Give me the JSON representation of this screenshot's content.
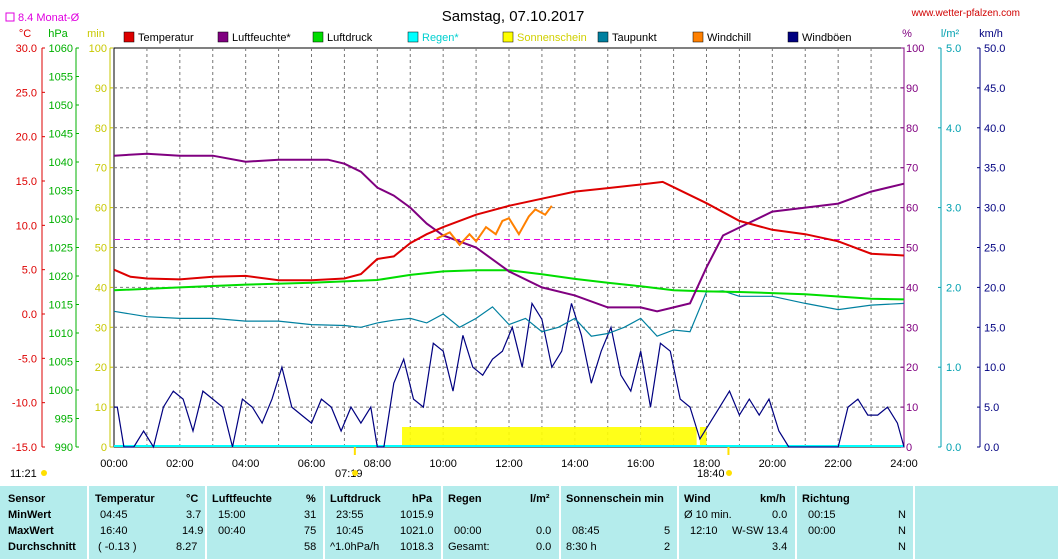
{
  "header": {
    "title": "Samstag, 07.10.2017",
    "url": "www.wetter-pfalzen.com",
    "avg_label": "8.4 Monat-Ø"
  },
  "axis_units": {
    "temp": "°C",
    "press": "hPa",
    "sun": "min",
    "hum": "%",
    "rain": "l/m²",
    "wind": "km/h"
  },
  "legend": [
    {
      "label": "Temperatur",
      "color": "#dd0000"
    },
    {
      "label": "Luftfeuchte*",
      "color": "#800080"
    },
    {
      "label": "Luftdruck",
      "color": "#00dd00"
    },
    {
      "label": "Regen*",
      "color": "#00ffff"
    },
    {
      "label": "Sonnenschein",
      "color": "#ffff00"
    },
    {
      "label": "Taupunkt",
      "color": "#0080a0"
    },
    {
      "label": "Windchill",
      "color": "#ff8000"
    },
    {
      "label": "Windböen",
      "color": "#000080"
    }
  ],
  "annotations": {
    "sunrise": "07:19",
    "sunset": "18:40",
    "bottom_left": "11:21"
  },
  "chart_data": {
    "type": "line",
    "x_ticks": [
      "00:00",
      "02:00",
      "04:00",
      "06:00",
      "08:00",
      "10:00",
      "12:00",
      "14:00",
      "16:00",
      "18:00",
      "20:00",
      "22:00",
      "24:00"
    ],
    "axes": {
      "temperature": {
        "unit": "°C",
        "ylim": [
          -15,
          30
        ],
        "ticks": [
          "30.0",
          "25.0",
          "20.0",
          "15.0",
          "10.0",
          "5.0",
          "0.0",
          "-5.0",
          "-10.0",
          "-15.0"
        ]
      },
      "pressure": {
        "unit": "hPa",
        "ylim": [
          990,
          1060
        ],
        "ticks": [
          "1060",
          "1055",
          "1050",
          "1045",
          "1040",
          "1035",
          "1030",
          "1025",
          "1020",
          "1015",
          "1010",
          "1005",
          "1000",
          "995",
          "990"
        ]
      },
      "sunshine": {
        "unit": "min",
        "ylim": [
          0,
          100
        ],
        "ticks": [
          "100",
          "90",
          "80",
          "70",
          "60",
          "50",
          "40",
          "30",
          "20",
          "10",
          "0"
        ]
      },
      "humidity": {
        "unit": "%",
        "ylim": [
          0,
          100
        ],
        "ticks": [
          "100",
          "90",
          "80",
          "70",
          "60",
          "50",
          "40",
          "30",
          "20",
          "10",
          "0"
        ]
      },
      "rain": {
        "unit": "l/m²",
        "ylim": [
          0,
          5
        ],
        "ticks": [
          "5.0",
          "4.0",
          "3.0",
          "2.0",
          "1.0",
          "0.0"
        ]
      },
      "wind": {
        "unit": "km/h",
        "ylim": [
          0,
          50
        ],
        "ticks": [
          "50.0",
          "45.0",
          "40.0",
          "35.0",
          "30.0",
          "25.0",
          "20.0",
          "15.0",
          "10.0",
          "5.0",
          "0.0"
        ]
      }
    },
    "monthly_avg_temp": 8.4,
    "series": [
      {
        "name": "Temperatur",
        "axis": "temperature",
        "x": [
          0,
          0.5,
          1,
          2,
          3,
          4,
          5,
          6,
          7,
          7.5,
          8,
          8.5,
          9,
          9.5,
          10,
          11,
          12,
          13,
          14,
          15,
          16,
          16.67,
          17,
          18,
          19,
          20,
          21,
          22,
          23,
          24
        ],
        "values": [
          5.0,
          4.2,
          4.0,
          3.9,
          4.2,
          4.3,
          3.8,
          3.8,
          4.0,
          4.5,
          6.2,
          6.5,
          8.0,
          9.0,
          9.8,
          11.2,
          12.2,
          13.0,
          13.8,
          14.2,
          14.6,
          14.9,
          14.3,
          12.5,
          10.5,
          9.5,
          9.0,
          8.2,
          6.8,
          6.6
        ]
      },
      {
        "name": "Luftfeuchte*",
        "axis": "humidity",
        "x": [
          0,
          1,
          2,
          3,
          4,
          5,
          6,
          6.5,
          7,
          7.5,
          8,
          8.5,
          9,
          9.5,
          10,
          11,
          12,
          13,
          14,
          15,
          16,
          16.5,
          17,
          17.5,
          18,
          18.5,
          19,
          20,
          21,
          22,
          23,
          24
        ],
        "values": [
          73,
          73.5,
          73,
          73,
          71.5,
          72,
          72,
          72,
          71,
          69,
          65,
          63,
          60,
          56,
          53,
          50,
          44,
          40,
          38,
          35,
          35,
          34,
          35,
          36,
          45,
          53,
          55,
          59,
          60,
          61,
          64,
          66
        ]
      },
      {
        "name": "Luftdruck",
        "axis": "pressure",
        "x": [
          0,
          2,
          4,
          6,
          8,
          9,
          10,
          11,
          12,
          13,
          14,
          15,
          16,
          17,
          18,
          19,
          20,
          21,
          22,
          23,
          24
        ],
        "values": [
          1017.5,
          1018.0,
          1018.5,
          1018.8,
          1019.3,
          1020.2,
          1020.8,
          1021.0,
          1021.0,
          1020.3,
          1019.5,
          1018.8,
          1018.2,
          1017.5,
          1017.3,
          1017.2,
          1017.0,
          1016.8,
          1016.4,
          1016.0,
          1015.9
        ]
      },
      {
        "name": "Taupunkt",
        "axis": "temperature",
        "x": [
          0,
          1,
          2,
          3,
          4,
          5,
          6,
          7,
          7.5,
          8,
          8.5,
          9,
          9.5,
          10,
          10.5,
          11,
          11.5,
          12,
          12.5,
          13,
          13.5,
          14,
          14.5,
          15,
          15.5,
          16,
          16.5,
          17,
          17.5,
          18,
          18.5,
          19,
          20,
          21,
          22,
          23,
          24
        ],
        "values": [
          0.3,
          -0.3,
          -0.5,
          -0.5,
          -0.8,
          -0.8,
          -1.2,
          -1.3,
          -1.5,
          -1.0,
          -0.7,
          -0.5,
          -1.0,
          0.0,
          -1.5,
          -0.5,
          0.8,
          -1.2,
          -0.5,
          -2.0,
          -1.5,
          -0.5,
          -2.5,
          -2.2,
          -1.5,
          -0.5,
          -2.5,
          -1.8,
          -2.0,
          2.5,
          2.6,
          2.0,
          2.0,
          1.2,
          0.5,
          1.0,
          1.2
        ]
      },
      {
        "name": "Windchill",
        "axis": "temperature",
        "x": [
          9.8,
          10.2,
          10.5,
          10.8,
          11,
          11.3,
          11.6,
          11.8,
          12,
          12.3,
          12.6,
          12.8,
          13.1,
          13.3
        ],
        "values": [
          8.5,
          9.2,
          7.8,
          9.0,
          8.2,
          9.8,
          9.0,
          10.5,
          10.8,
          9.0,
          11.0,
          11.8,
          11.2,
          12.2
        ]
      },
      {
        "name": "Windböen",
        "axis": "wind",
        "x": [
          0,
          0.1,
          0.3,
          0.6,
          0.9,
          1.2,
          1.5,
          1.8,
          2.1,
          2.4,
          2.7,
          3,
          3.3,
          3.6,
          3.9,
          4.2,
          4.5,
          4.8,
          5.1,
          5.4,
          5.7,
          6,
          6.3,
          6.6,
          6.9,
          7.2,
          7.5,
          7.8,
          8,
          8.2,
          8.5,
          8.8,
          9.1,
          9.4,
          9.7,
          10,
          10.3,
          10.6,
          10.9,
          11.2,
          11.5,
          11.8,
          12.1,
          12.4,
          12.7,
          13,
          13.3,
          13.6,
          13.9,
          14.2,
          14.5,
          14.8,
          15.1,
          15.4,
          15.7,
          16,
          16.3,
          16.6,
          16.9,
          17.2,
          17.5,
          17.8,
          18.1,
          18.4,
          18.7,
          19,
          19.3,
          19.6,
          19.9,
          20.2,
          20.5,
          20.8,
          21.1,
          21.4,
          21.7,
          22,
          22.3,
          22.6,
          22.9,
          23.2,
          23.5,
          23.8,
          24
        ],
        "values": [
          5,
          5,
          0,
          0,
          2,
          0,
          5,
          7,
          6,
          2,
          7,
          6,
          5,
          0,
          6,
          5,
          3,
          6,
          10,
          5,
          4,
          3,
          6,
          5,
          2,
          5,
          3,
          5,
          0,
          0,
          8,
          11,
          6,
          5,
          13,
          12,
          7,
          14,
          10,
          9,
          11,
          12,
          15,
          10,
          18,
          16,
          10,
          12,
          18,
          14,
          8,
          12,
          15,
          9,
          7,
          12,
          5,
          13,
          12,
          6,
          5,
          1,
          3,
          5,
          7,
          4,
          6,
          4,
          6,
          2,
          0,
          0,
          0,
          0,
          0,
          0,
          5,
          6,
          4,
          4,
          5,
          3,
          0
        ]
      }
    ],
    "sunshine_blocks": [
      [
        8.75,
        16.0
      ],
      [
        16.0,
        17.7
      ],
      [
        17.8,
        18.0
      ]
    ],
    "rain": "none"
  },
  "table": {
    "rows": [
      "Sensor",
      "MinWert",
      "MaxWert",
      "Durchschnitt"
    ],
    "temperature": {
      "h1": "Temperatur",
      "h2": "°C",
      "min_time": "04:45",
      "min_val": "3.7",
      "max_time": "16:40",
      "max_val": "14.9",
      "avg_a": "( -0.13 )",
      "avg_b": "8.27"
    },
    "humidity": {
      "h1": "Luftfeuchte",
      "h2": "%",
      "min_time": "15:00",
      "min_val": "31",
      "max_time": "00:40",
      "max_val": "75",
      "avg_val": "58"
    },
    "pressure": {
      "h1": "Luftdruck",
      "h2": "hPa",
      "min_time": "23:55",
      "min_val": "1015.9",
      "max_time": "10:45",
      "max_val": "1021.0",
      "avg_a": "^1.0hPa/h",
      "avg_b": "1018.3"
    },
    "rain": {
      "h1": "Regen",
      "h2": "l/m²",
      "max_time": "00:00",
      "max_val": "0.0",
      "avg_a": "Gesamt:",
      "avg_b": "0.0"
    },
    "sun": {
      "h1": "Sonnenschein min",
      "min_time": "",
      "max_time": "08:45",
      "max_val": "5",
      "avg_a": "8:30 h",
      "avg_b": "2"
    },
    "wind": {
      "h1": "Wind",
      "h2": "km/h",
      "min_a": "Ø 10 min.",
      "min_val": "0.0",
      "max_time": "12:10",
      "max_dir": "W-SW 13.4",
      "avg_val": "3.4"
    },
    "direction": {
      "h1": "Richtung",
      "min_time": "00:15",
      "min_val": "N",
      "max_time": "00:00",
      "max_val": "N",
      "avg_val": "N"
    }
  }
}
